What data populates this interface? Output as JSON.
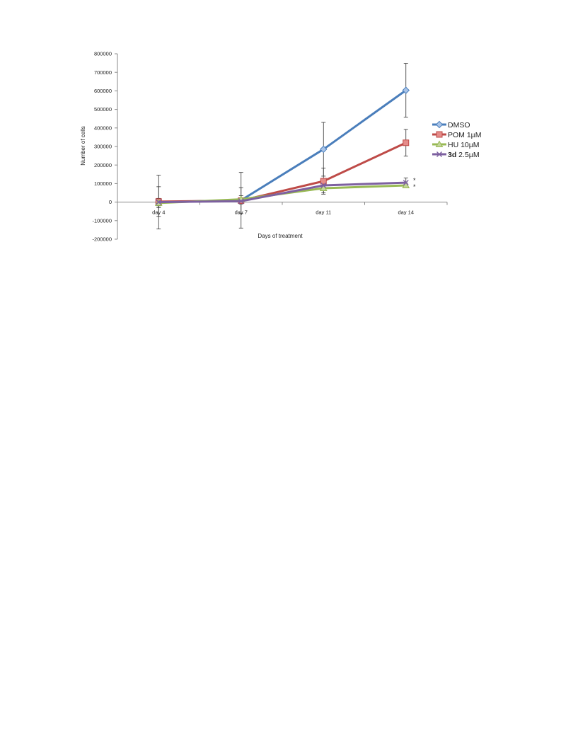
{
  "chart_data": {
    "type": "line",
    "xlabel": "Days of treatment",
    "ylabel": "Number of cells",
    "categories": [
      "day 4",
      "day 7",
      "day 11",
      "day 14"
    ],
    "ylim": [
      -200000,
      800000
    ],
    "yticks": [
      -200000,
      -100000,
      0,
      100000,
      200000,
      300000,
      400000,
      500000,
      600000,
      700000,
      800000
    ],
    "grid": false,
    "legend_position": "right",
    "series": [
      {
        "name": "DMSO",
        "color": "#4a7ebb",
        "marker": "diamond",
        "values": [
          0,
          10000,
          285000,
          603000
        ],
        "errors": [
          145000,
          150000,
          145000,
          145000
        ]
      },
      {
        "name": "POM 1µM",
        "color": "#be4b48",
        "marker": "square",
        "values": [
          3000,
          8000,
          113000,
          320000
        ],
        "errors": [
          80000,
          70000,
          70000,
          72000
        ]
      },
      {
        "name": "HU 10µM",
        "color": "#98b954",
        "marker": "triangle",
        "values": [
          -5000,
          15000,
          75000,
          90000
        ],
        "errors": [
          25000,
          20000,
          25000,
          12000
        ]
      },
      {
        "name_bold": "3d",
        "name": " 2.5µM",
        "color": "#7d60a0",
        "marker": "x",
        "values": [
          0,
          5000,
          90000,
          105000
        ],
        "errors": [
          20000,
          15000,
          22000,
          25000
        ]
      }
    ],
    "annotations": [
      "*",
      "*"
    ]
  }
}
